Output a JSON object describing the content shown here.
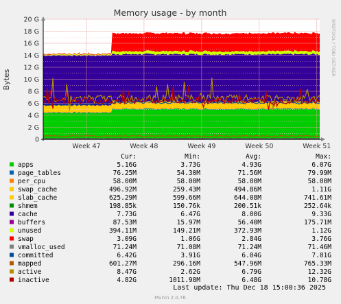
{
  "chart_data": {
    "type": "area",
    "title": "Memory usage - by month",
    "ylabel": "Bytes",
    "side_label": "RRDTOOL / TOBI OETIKER",
    "y_unit_labels": [
      "0",
      "2 G",
      "4 G",
      "6 G",
      "8 G",
      "10 G",
      "12 G",
      "14 G",
      "16 G",
      "18 G",
      "20 G"
    ],
    "ylim": [
      0,
      20
    ],
    "x_ticks": [
      "Week 47",
      "Week 48",
      "Week 49",
      "Week 50",
      "Week 51"
    ],
    "grid": true,
    "columns": [
      "Cur:",
      "Min:",
      "Avg:",
      "Max:"
    ],
    "series": [
      {
        "name": "apps",
        "color": "#00cc00",
        "cur": "5.16G",
        "min": "3.73G",
        "avg": "4.93G",
        "max": "6.07G"
      },
      {
        "name": "page_tables",
        "color": "#0066b3",
        "cur": "76.25M",
        "min": "54.30M",
        "avg": "71.56M",
        "max": "79.99M"
      },
      {
        "name": "per_cpu",
        "color": "#ff8000",
        "cur": "58.00M",
        "min": "58.00M",
        "avg": "58.00M",
        "max": "58.00M"
      },
      {
        "name": "swap_cache",
        "color": "#ffcc00",
        "cur": "496.92M",
        "min": "259.43M",
        "avg": "494.86M",
        "max": "1.11G"
      },
      {
        "name": "slab_cache",
        "color": "#ffcc00",
        "cur": "625.29M",
        "min": "599.66M",
        "avg": "644.08M",
        "max": "741.61M"
      },
      {
        "name": "shmem",
        "color": "#008f00",
        "cur": "198.85k",
        "min": "150.76k",
        "avg": "200.51k",
        "max": "252.64k"
      },
      {
        "name": "cache",
        "color": "#330099",
        "cur": "7.73G",
        "min": "6.47G",
        "avg": "8.00G",
        "max": "9.33G"
      },
      {
        "name": "buffers",
        "color": "#990099",
        "cur": "87.53M",
        "min": "15.97M",
        "avg": "56.40M",
        "max": "175.71M"
      },
      {
        "name": "unused",
        "color": "#ccff00",
        "cur": "394.11M",
        "min": "149.21M",
        "avg": "372.93M",
        "max": "1.12G"
      },
      {
        "name": "swap",
        "color": "#ff0000",
        "cur": "3.09G",
        "min": "1.06G",
        "avg": "2.84G",
        "max": "3.76G"
      },
      {
        "name": "vmalloc_used",
        "color": "#808080",
        "cur": "71.24M",
        "min": "71.08M",
        "avg": "71.24M",
        "max": "71.46M"
      },
      {
        "name": "committed",
        "color": "#004d99",
        "cur": "6.42G",
        "min": "3.91G",
        "avg": "6.04G",
        "max": "7.01G"
      },
      {
        "name": "mapped",
        "color": "#b35a00",
        "cur": "601.27M",
        "min": "296.16M",
        "avg": "547.96M",
        "max": "765.33M"
      },
      {
        "name": "active",
        "color": "#b38f00",
        "cur": "8.47G",
        "min": "2.62G",
        "avg": "6.79G",
        "max": "12.32G"
      },
      {
        "name": "inactive",
        "color": "#b30000",
        "cur": "4.82G",
        "min": "1011.98M",
        "avg": "6.48G",
        "max": "10.78G"
      }
    ],
    "stacked_approx": {
      "apps": {
        "before": 4.4,
        "after": 5.0
      },
      "page_tables": 0.07,
      "per_cpu": 0.06,
      "swap_cache": 0.5,
      "slab_cache": 0.64,
      "cache": {
        "before": 8.3,
        "after": 7.9
      },
      "unused": {
        "before": 0.2,
        "after": 0.5
      },
      "swap": {
        "before": 0.1,
        "after": 3.0
      },
      "step_week": 47.45
    }
  },
  "footer": {
    "last_update": "Last update: Thu Dec 18 15:00:36 2025",
    "version": "Munin 2.0.76"
  }
}
